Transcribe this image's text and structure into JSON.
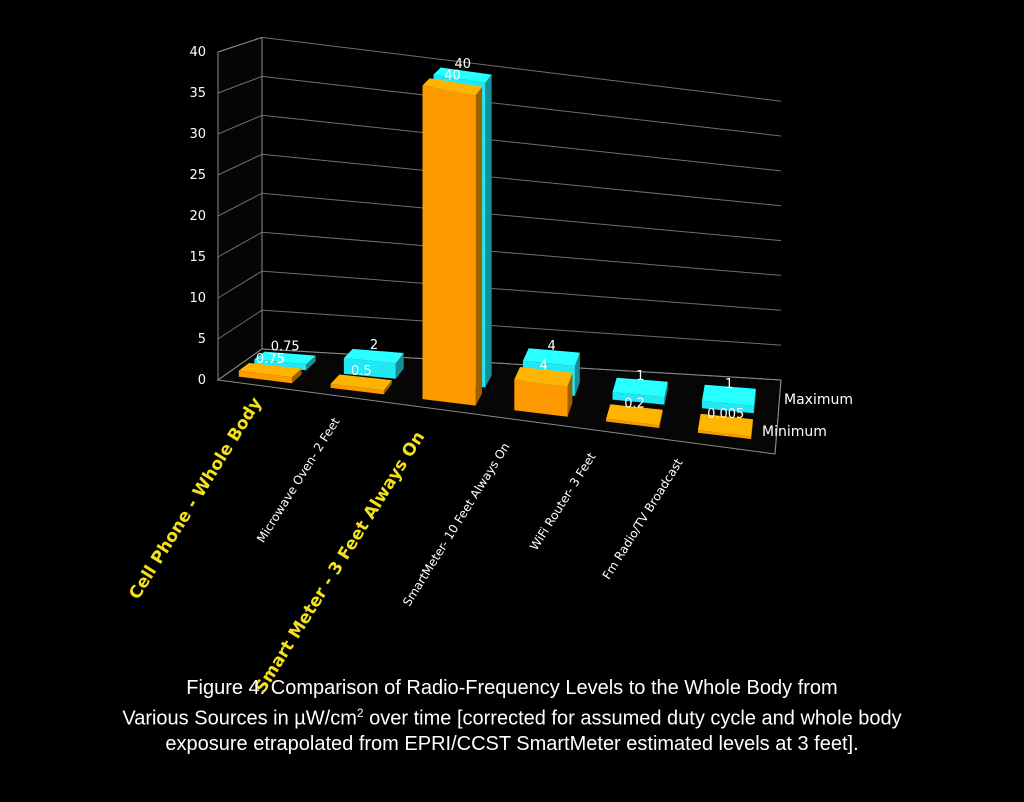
{
  "chart_data": {
    "type": "bar",
    "categories": [
      "Cell Phone - Whole Body",
      "Microwave Oven- 2 Feet",
      "Smart Meter - 3 Feet Always On",
      "SmartMeter- 10 Feet Always On",
      "WiFi Router- 3 Feet",
      "Fm Radio/TV Broadcast"
    ],
    "highlighted_categories": [
      0,
      2
    ],
    "series": [
      {
        "name": "Minimum",
        "values": [
          0.75,
          0.5,
          40,
          4,
          0.2,
          0.005
        ],
        "color": "#ff9900"
      },
      {
        "name": "Maximum",
        "values": [
          0.75,
          2,
          40,
          4,
          1,
          1
        ],
        "color": "#22e8f5"
      }
    ],
    "value_labels": {
      "min": [
        "0.75",
        "0.5",
        "40",
        "4",
        "0.2",
        "0.005"
      ],
      "max": [
        "0.75",
        "2",
        "40",
        "4",
        "1",
        "1"
      ]
    },
    "ylim": [
      0,
      40
    ],
    "yticks": [
      "0",
      "5",
      "10",
      "15",
      "20",
      "25",
      "30",
      "35",
      "40"
    ],
    "grid": true,
    "colors": {
      "background": "#000000",
      "highlight_label": "#f3e21b",
      "label": "#ffffff",
      "grid": "#8a8a8a"
    }
  },
  "caption": {
    "line1": "Figure 4. Comparison of Radio-Frequency Levels to the Whole Body from",
    "line2_pre": "Various Sources in ",
    "unit": "µW/cm",
    "unit_exp": "2",
    "line2_post": " over time [corrected for assumed duty cycle and whole body",
    "line3": "exposure etrapolated from EPRI/CCST SmartMeter estimated levels at 3 feet]."
  }
}
